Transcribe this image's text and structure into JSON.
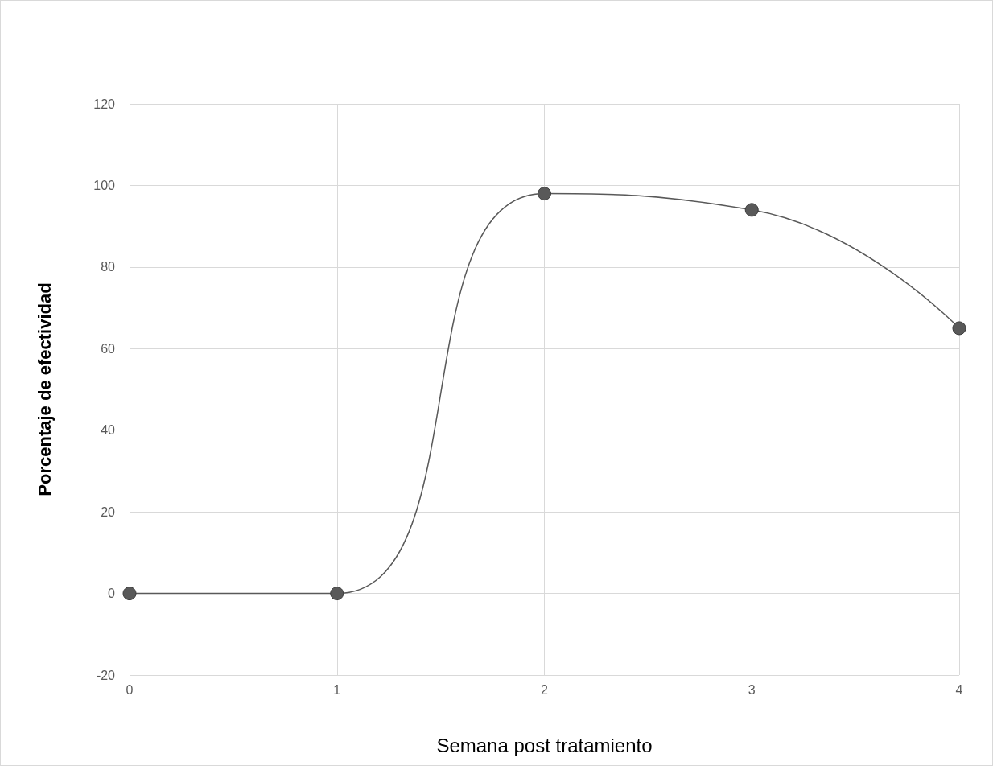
{
  "chart_data": {
    "type": "line",
    "xlabel": "Semana post tratamiento",
    "ylabel": "Porcentaje de efectividad",
    "x": [
      0,
      1,
      2,
      3,
      4
    ],
    "series": [
      {
        "color": "#595959",
        "values": [
          0,
          0,
          98,
          94,
          65
        ]
      }
    ],
    "xlim": [
      0,
      4
    ],
    "xticks": [
      0,
      1,
      2,
      3,
      4
    ],
    "ylim": [
      -20,
      120
    ],
    "yticks": [
      -20,
      0,
      20,
      40,
      60,
      80,
      100,
      120
    ],
    "grid": true,
    "marker": "circle",
    "line_style": "solid"
  }
}
